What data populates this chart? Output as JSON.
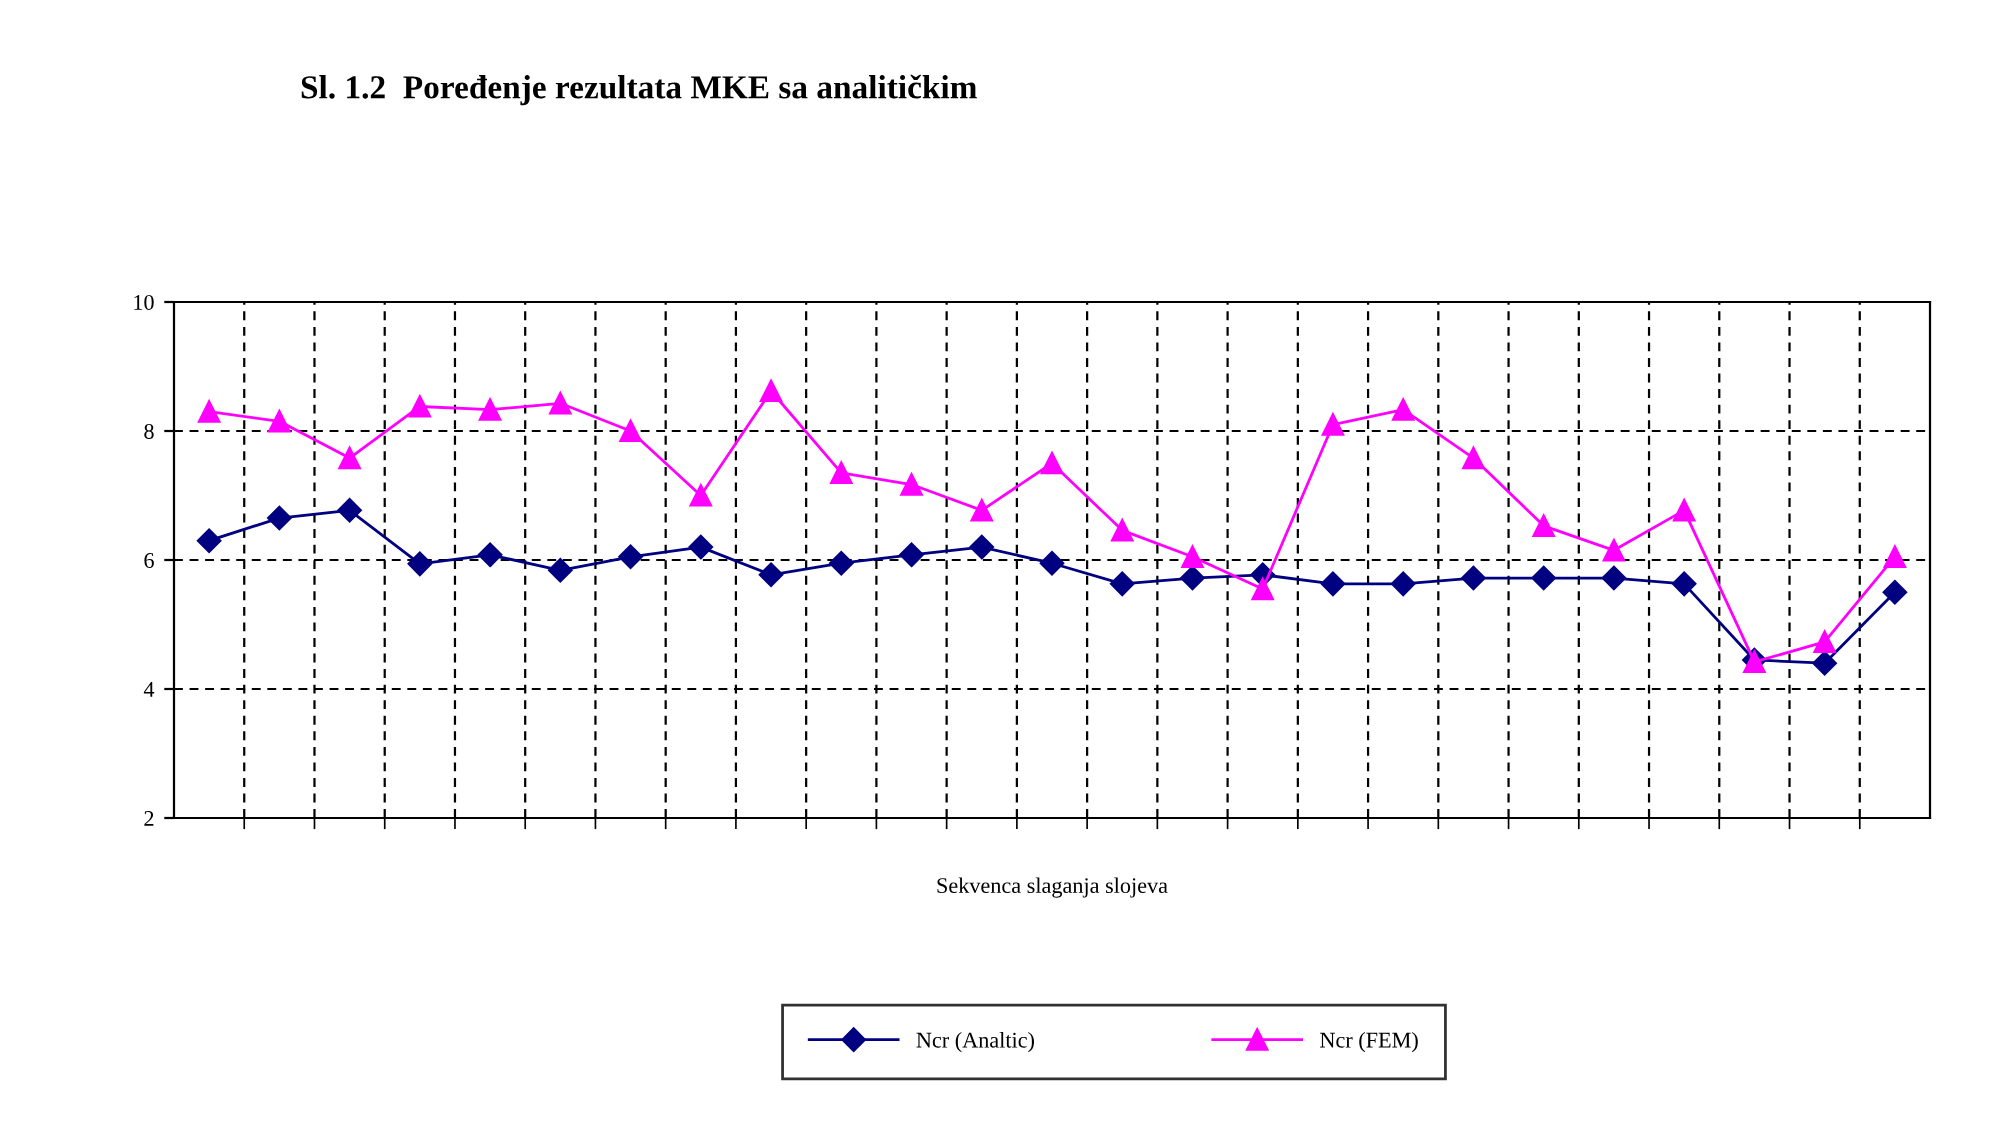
{
  "chart_data": {
    "type": "line",
    "title": "Sl. 1.2  Poređenje rezultata MKE sa analitičkim",
    "xlabel": "Sekvenca slaganja slojeva",
    "categories": [
      null,
      null,
      null,
      null,
      null,
      null,
      null,
      null,
      null,
      null,
      null,
      null,
      null,
      null,
      null,
      null,
      null,
      null,
      null,
      null,
      null,
      null,
      null,
      null,
      null
    ],
    "series": [
      {
        "name": "Ncr (Analtic)",
        "color": "#000080",
        "marker": "diamond",
        "values": [
          6.3,
          6.65,
          6.77,
          5.94,
          6.08,
          5.84,
          6.05,
          6.2,
          5.77,
          5.95,
          6.08,
          6.2,
          5.95,
          5.63,
          5.72,
          5.77,
          5.63,
          5.63,
          5.72,
          5.72,
          5.72,
          5.63,
          4.45,
          4.4,
          5.5
        ]
      },
      {
        "name": "Ncr (FEM)",
        "color": "#ff00ff",
        "marker": "triangle",
        "values": [
          8.3,
          8.15,
          7.58,
          8.38,
          8.33,
          8.43,
          8.0,
          7.0,
          8.62,
          7.35,
          7.17,
          6.77,
          7.5,
          6.46,
          6.05,
          5.55,
          8.1,
          8.33,
          7.58,
          6.53,
          6.15,
          6.77,
          4.42,
          4.73,
          6.05
        ]
      }
    ],
    "ylim": [
      2,
      10
    ],
    "yticks": [
      2,
      4,
      6,
      8,
      10
    ],
    "grid": true,
    "legend": "bottom",
    "line_style": "solid"
  }
}
